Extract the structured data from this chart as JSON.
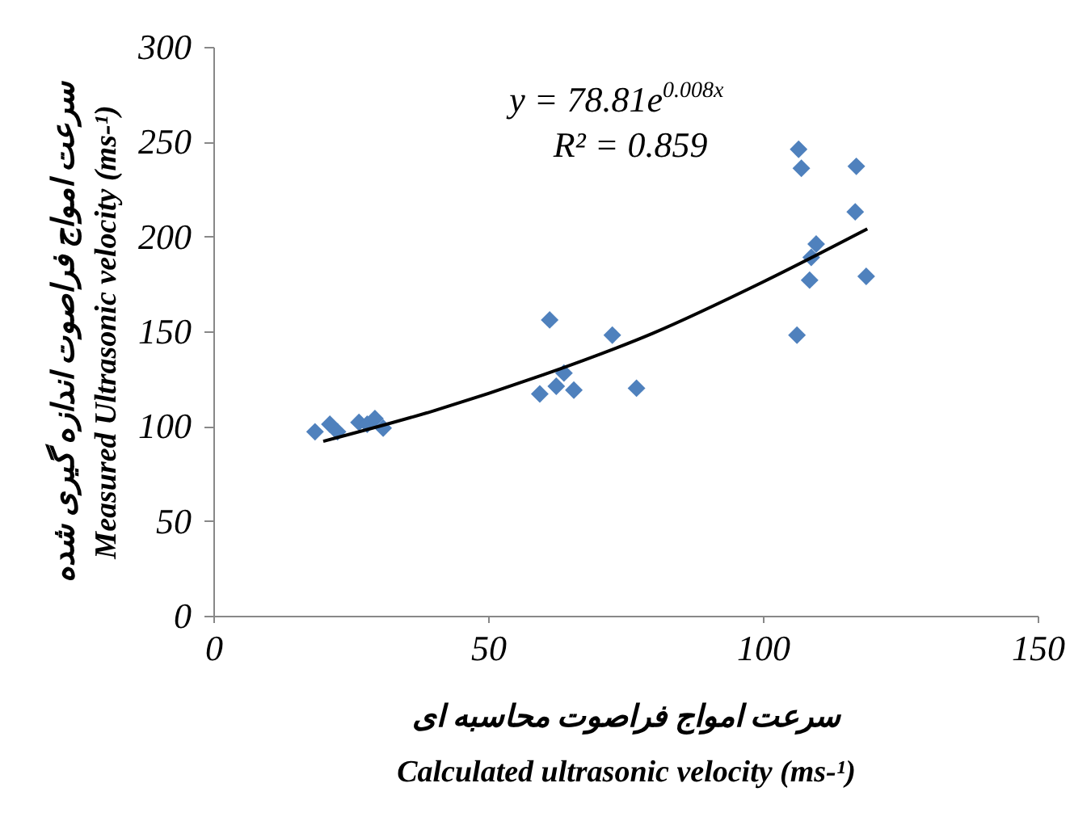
{
  "chart_data": {
    "type": "scatter",
    "xlabel": "سرعت امواج فراصوت محاسبه ای\nCalculated ultrasonic velocity (ms-¹)",
    "ylabel": "سرعت امواج فراصوت اندازه گیری شده\nMeasured Ultrasonic velocity (ms-¹)",
    "xlim": [
      0,
      150
    ],
    "xticks": [
      0,
      50,
      100,
      150
    ],
    "ylim": [
      0,
      300
    ],
    "yticks": [
      0,
      50,
      100,
      150,
      200,
      250,
      300
    ],
    "grid": false,
    "legend": false,
    "marker": "diamond",
    "annotations": [
      "y = 78.81e$^{0.008x}$",
      "R² = 0.859"
    ],
    "series": [
      {
        "color": "#4f81bd",
        "x": [
          18.5,
          21.2,
          22.6,
          26.5,
          28,
          29.4,
          30.9,
          59.4,
          61.2,
          62.4,
          63.8,
          65.6,
          72.6,
          77,
          106.2,
          106.5,
          107,
          108.5,
          108.8,
          109.7,
          116.8,
          117,
          118.8
        ],
        "values": [
          97,
          101,
          97,
          102,
          101,
          104,
          99,
          117,
          156,
          121,
          128,
          119,
          148,
          120,
          148,
          246,
          236,
          177,
          189,
          196,
          213,
          237,
          179
        ]
      },
      {
        "type": "line",
        "color": "#000000",
        "marker": "none",
        "x": [
          20,
          40,
          60,
          80,
          100,
          119
        ],
        "values": [
          92,
          108,
          127,
          149,
          176,
          204
        ]
      }
    ]
  }
}
